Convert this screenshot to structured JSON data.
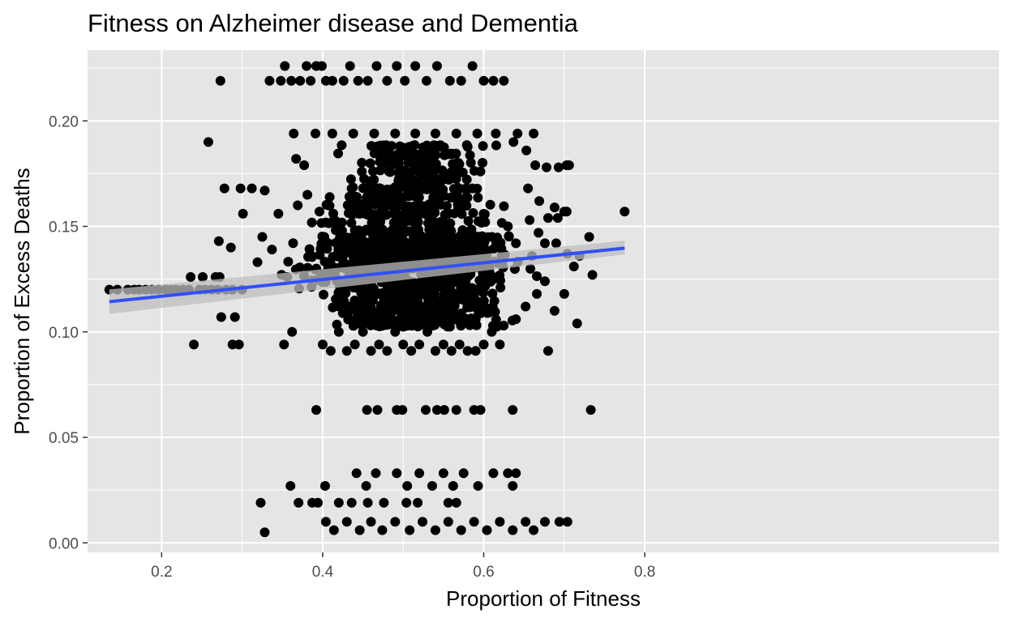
{
  "chart_data": {
    "type": "scatter",
    "title": "Fitness on Alzheimer disease and Dementia",
    "xlabel": "Proportion of Fitness",
    "ylabel": "Proportion of Excess Deaths",
    "xlim": [
      0.108,
      1.24
    ],
    "ylim": [
      -0.0045,
      0.2335
    ],
    "x_ticks": [
      {
        "value": 0.2,
        "label": "0.2"
      },
      {
        "value": 0.4,
        "label": "0.4"
      },
      {
        "value": 0.6,
        "label": "0.6"
      },
      {
        "value": 0.8,
        "label": "0.8"
      }
    ],
    "y_ticks": [
      {
        "value": 0.0,
        "label": "0.00"
      },
      {
        "value": 0.05,
        "label": "0.05"
      },
      {
        "value": 0.1,
        "label": "0.10"
      },
      {
        "value": 0.15,
        "label": "0.15"
      },
      {
        "value": 0.2,
        "label": "0.20"
      }
    ],
    "grid": true,
    "legend": "none",
    "colors": {
      "panel": "#e5e5e5",
      "grid": "#ffffff",
      "points": "#000000",
      "trend": "#3050f8",
      "confidence_band": "#bdbdbd"
    },
    "trend_line": {
      "type": "linear fit",
      "x": [
        0.135,
        0.775
      ],
      "y": [
        0.1143,
        0.1397
      ],
      "ci_lower": [
        0.1085,
        0.1367
      ],
      "ci_upper": [
        0.1201,
        0.1432
      ]
    },
    "series": [
      {
        "type": "scatter",
        "note_clusters": "dense cloud of several thousand county points",
        "points": [
          [
            0.135,
            0.12
          ],
          [
            0.145,
            0.12
          ],
          [
            0.158,
            0.12
          ],
          [
            0.166,
            0.12
          ],
          [
            0.172,
            0.12
          ],
          [
            0.18,
            0.12
          ],
          [
            0.188,
            0.12
          ],
          [
            0.196,
            0.12
          ],
          [
            0.205,
            0.12
          ],
          [
            0.212,
            0.12
          ],
          [
            0.218,
            0.12
          ],
          [
            0.226,
            0.12
          ],
          [
            0.234,
            0.12
          ],
          [
            0.247,
            0.12
          ],
          [
            0.254,
            0.12
          ],
          [
            0.262,
            0.12
          ],
          [
            0.27,
            0.12
          ],
          [
            0.28,
            0.12
          ],
          [
            0.288,
            0.12
          ],
          [
            0.3,
            0.12
          ],
          [
            0.236,
            0.126
          ],
          [
            0.251,
            0.126
          ],
          [
            0.267,
            0.126
          ],
          [
            0.272,
            0.126
          ],
          [
            0.24,
            0.094
          ],
          [
            0.274,
            0.107
          ],
          [
            0.291,
            0.107
          ],
          [
            0.288,
            0.094
          ],
          [
            0.296,
            0.094
          ],
          [
            0.273,
            0.219
          ],
          [
            0.258,
            0.19
          ],
          [
            0.278,
            0.168
          ],
          [
            0.271,
            0.143
          ],
          [
            0.286,
            0.14
          ],
          [
            0.298,
            0.168
          ],
          [
            0.312,
            0.168
          ],
          [
            0.328,
            0.167
          ],
          [
            0.301,
            0.156
          ],
          [
            0.325,
            0.145
          ],
          [
            0.319,
            0.133
          ],
          [
            0.328,
            0.005
          ],
          [
            0.323,
            0.019
          ],
          [
            0.334,
            0.219
          ],
          [
            0.348,
            0.219
          ],
          [
            0.353,
            0.226
          ],
          [
            0.361,
            0.219
          ],
          [
            0.372,
            0.219
          ],
          [
            0.38,
            0.226
          ],
          [
            0.385,
            0.219
          ],
          [
            0.392,
            0.226
          ],
          [
            0.399,
            0.226
          ],
          [
            0.404,
            0.219
          ],
          [
            0.412,
            0.219
          ],
          [
            0.426,
            0.219
          ],
          [
            0.434,
            0.226
          ],
          [
            0.444,
            0.219
          ],
          [
            0.456,
            0.219
          ],
          [
            0.467,
            0.226
          ],
          [
            0.48,
            0.219
          ],
          [
            0.492,
            0.226
          ],
          [
            0.502,
            0.219
          ],
          [
            0.515,
            0.226
          ],
          [
            0.529,
            0.219
          ],
          [
            0.542,
            0.226
          ],
          [
            0.558,
            0.219
          ],
          [
            0.572,
            0.219
          ],
          [
            0.586,
            0.226
          ],
          [
            0.6,
            0.219
          ],
          [
            0.612,
            0.219
          ],
          [
            0.625,
            0.219
          ],
          [
            0.392,
            0.063
          ],
          [
            0.455,
            0.063
          ],
          [
            0.468,
            0.063
          ],
          [
            0.492,
            0.063
          ],
          [
            0.499,
            0.063
          ],
          [
            0.528,
            0.063
          ],
          [
            0.542,
            0.063
          ],
          [
            0.551,
            0.063
          ],
          [
            0.566,
            0.063
          ],
          [
            0.588,
            0.063
          ],
          [
            0.596,
            0.063
          ],
          [
            0.636,
            0.063
          ],
          [
            0.733,
            0.063
          ],
          [
            0.36,
            0.027
          ],
          [
            0.403,
            0.027
          ],
          [
            0.442,
            0.033
          ],
          [
            0.454,
            0.027
          ],
          [
            0.466,
            0.033
          ],
          [
            0.492,
            0.033
          ],
          [
            0.505,
            0.027
          ],
          [
            0.52,
            0.033
          ],
          [
            0.536,
            0.027
          ],
          [
            0.55,
            0.033
          ],
          [
            0.562,
            0.027
          ],
          [
            0.575,
            0.033
          ],
          [
            0.593,
            0.027
          ],
          [
            0.612,
            0.033
          ],
          [
            0.63,
            0.033
          ],
          [
            0.64,
            0.033
          ],
          [
            0.636,
            0.027
          ],
          [
            0.37,
            0.019
          ],
          [
            0.387,
            0.019
          ],
          [
            0.394,
            0.019
          ],
          [
            0.42,
            0.019
          ],
          [
            0.436,
            0.019
          ],
          [
            0.456,
            0.019
          ],
          [
            0.476,
            0.019
          ],
          [
            0.504,
            0.019
          ],
          [
            0.518,
            0.019
          ],
          [
            0.556,
            0.019
          ],
          [
            0.566,
            0.019
          ],
          [
            0.404,
            0.01
          ],
          [
            0.414,
            0.006
          ],
          [
            0.43,
            0.01
          ],
          [
            0.446,
            0.006
          ],
          [
            0.46,
            0.01
          ],
          [
            0.474,
            0.006
          ],
          [
            0.49,
            0.01
          ],
          [
            0.508,
            0.006
          ],
          [
            0.524,
            0.01
          ],
          [
            0.54,
            0.006
          ],
          [
            0.556,
            0.01
          ],
          [
            0.572,
            0.006
          ],
          [
            0.588,
            0.01
          ],
          [
            0.604,
            0.006
          ],
          [
            0.62,
            0.01
          ],
          [
            0.636,
            0.006
          ],
          [
            0.652,
            0.01
          ],
          [
            0.662,
            0.006
          ],
          [
            0.676,
            0.01
          ],
          [
            0.694,
            0.01
          ],
          [
            0.704,
            0.01
          ],
          [
            0.364,
            0.194
          ],
          [
            0.367,
            0.182
          ],
          [
            0.377,
            0.179
          ],
          [
            0.381,
            0.165
          ],
          [
            0.369,
            0.16
          ],
          [
            0.345,
            0.156
          ],
          [
            0.337,
            0.139
          ],
          [
            0.356,
            0.126
          ],
          [
            0.362,
            0.1
          ],
          [
            0.352,
            0.094
          ],
          [
            0.391,
            0.194
          ],
          [
            0.396,
            0.157
          ],
          [
            0.402,
            0.145
          ],
          [
            0.412,
            0.194
          ],
          [
            0.438,
            0.194
          ],
          [
            0.464,
            0.194
          ],
          [
            0.49,
            0.194
          ],
          [
            0.515,
            0.194
          ],
          [
            0.54,
            0.194
          ],
          [
            0.566,
            0.194
          ],
          [
            0.592,
            0.194
          ],
          [
            0.615,
            0.194
          ],
          [
            0.642,
            0.194
          ],
          [
            0.662,
            0.194
          ],
          [
            0.637,
            0.19
          ],
          [
            0.653,
            0.186
          ],
          [
            0.664,
            0.179
          ],
          [
            0.678,
            0.178
          ],
          [
            0.693,
            0.178
          ],
          [
            0.703,
            0.179
          ],
          [
            0.706,
            0.179
          ],
          [
            0.655,
            0.168
          ],
          [
            0.669,
            0.162
          ],
          [
            0.688,
            0.159
          ],
          [
            0.7,
            0.157
          ],
          [
            0.703,
            0.157
          ],
          [
            0.692,
            0.154
          ],
          [
            0.68,
            0.154
          ],
          [
            0.657,
            0.153
          ],
          [
            0.668,
            0.147
          ],
          [
            0.676,
            0.142
          ],
          [
            0.69,
            0.142
          ],
          [
            0.704,
            0.137
          ],
          [
            0.712,
            0.131
          ],
          [
            0.719,
            0.136
          ],
          [
            0.731,
            0.145
          ],
          [
            0.735,
            0.127
          ],
          [
            0.7,
            0.118
          ],
          [
            0.688,
            0.11
          ],
          [
            0.716,
            0.104
          ],
          [
            0.68,
            0.091
          ],
          [
            0.775,
            0.157
          ],
          [
            0.4,
            0.094
          ],
          [
            0.41,
            0.091
          ],
          [
            0.42,
            0.1
          ],
          [
            0.43,
            0.091
          ],
          [
            0.44,
            0.094
          ],
          [
            0.45,
            0.1
          ],
          [
            0.46,
            0.091
          ],
          [
            0.47,
            0.094
          ],
          [
            0.48,
            0.091
          ],
          [
            0.49,
            0.1
          ],
          [
            0.5,
            0.094
          ],
          [
            0.51,
            0.091
          ],
          [
            0.52,
            0.094
          ],
          [
            0.53,
            0.1
          ],
          [
            0.54,
            0.091
          ],
          [
            0.55,
            0.094
          ],
          [
            0.56,
            0.091
          ],
          [
            0.57,
            0.094
          ],
          [
            0.58,
            0.091
          ],
          [
            0.59,
            0.091
          ],
          [
            0.6,
            0.094
          ],
          [
            0.61,
            0.1
          ],
          [
            0.62,
            0.094
          ],
          [
            0.64,
            0.106
          ],
          [
            0.652,
            0.112
          ],
          [
            0.666,
            0.118
          ],
          [
            0.676,
            0.124
          ],
          [
            0.66,
            0.136
          ],
          [
            0.64,
            0.142
          ],
          [
            0.63,
            0.15
          ]
        ],
        "dense_bands": [
          {
            "x_range": [
              0.33,
              0.68
            ],
            "y_values": [
              0.121,
              0.124,
              0.127,
              0.13,
              0.133,
              0.136,
              0.139,
              0.142,
              0.145
            ],
            "density": "very high"
          },
          {
            "x_range": [
              0.36,
              0.66
            ],
            "y_values": [
              0.103,
              0.106,
              0.109,
              0.112,
              0.115,
              0.118
            ],
            "density": "high"
          },
          {
            "x_range": [
              0.36,
              0.65
            ],
            "y_values": [
              0.148,
              0.152,
              0.156,
              0.16,
              0.164,
              0.168
            ],
            "density": "high"
          },
          {
            "x_range": [
              0.4,
              0.64
            ],
            "y_values": [
              0.172,
              0.176,
              0.18,
              0.184,
              0.188
            ],
            "density": "medium"
          }
        ]
      }
    ]
  }
}
